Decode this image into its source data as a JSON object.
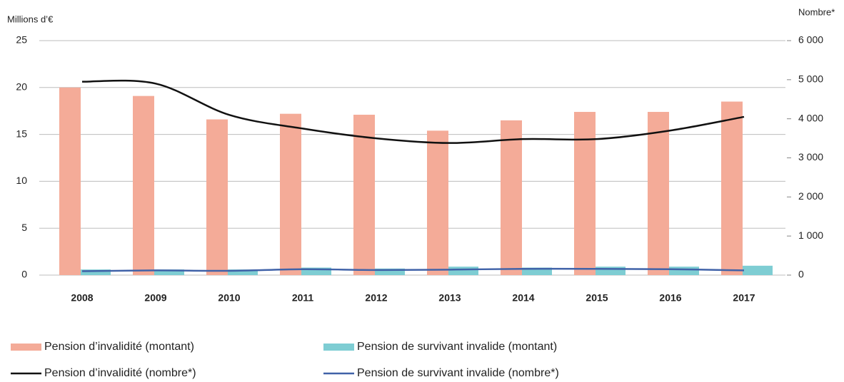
{
  "chart_data": {
    "type": "bar",
    "y_label": "Millions d’€",
    "y2_label": "Nombre*",
    "categories": [
      "2008",
      "2009",
      "2010",
      "2011",
      "2012",
      "2013",
      "2014",
      "2015",
      "2016",
      "2017"
    ],
    "series": [
      {
        "name": "Pension d’invalidité (montant)",
        "type": "bar",
        "color": "#f4ab98",
        "values": [
          20.0,
          19.1,
          16.6,
          17.2,
          17.1,
          15.4,
          16.5,
          17.4,
          17.4,
          18.5
        ]
      },
      {
        "name": "Pension de survivant invalide (montant)",
        "type": "bar",
        "color": "#7ecdd3",
        "values": [
          0.6,
          0.6,
          0.6,
          0.8,
          0.7,
          0.9,
          0.8,
          0.9,
          0.9,
          1.0
        ]
      },
      {
        "name": "Pension d’invalidité (nombre*)",
        "type": "line",
        "axis": "y2",
        "color": "#111111",
        "values": [
          4950,
          4900,
          4100,
          3750,
          3500,
          3380,
          3480,
          3480,
          3700,
          4050
        ]
      },
      {
        "name": "Pension de survivant invalide (nombre*)",
        "type": "line",
        "axis": "y2",
        "color": "#4062a8",
        "values": [
          100,
          120,
          110,
          150,
          130,
          140,
          160,
          160,
          150,
          120
        ]
      }
    ],
    "ylim": [
      0,
      25
    ],
    "yticks": [
      0,
      5,
      10,
      15,
      20,
      25
    ],
    "y2lim": [
      0,
      6000
    ],
    "y2ticks": [
      0,
      {
        "value": 1000,
        "label": "1 000"
      },
      {
        "value": 2000,
        "label": "2 000"
      },
      {
        "value": 3000,
        "label": "3 000"
      },
      {
        "value": 4000,
        "label": "4 000"
      },
      {
        "value": 5000,
        "label": "5 000"
      },
      {
        "value": 6000,
        "label": "6 000"
      }
    ],
    "grid": true
  }
}
